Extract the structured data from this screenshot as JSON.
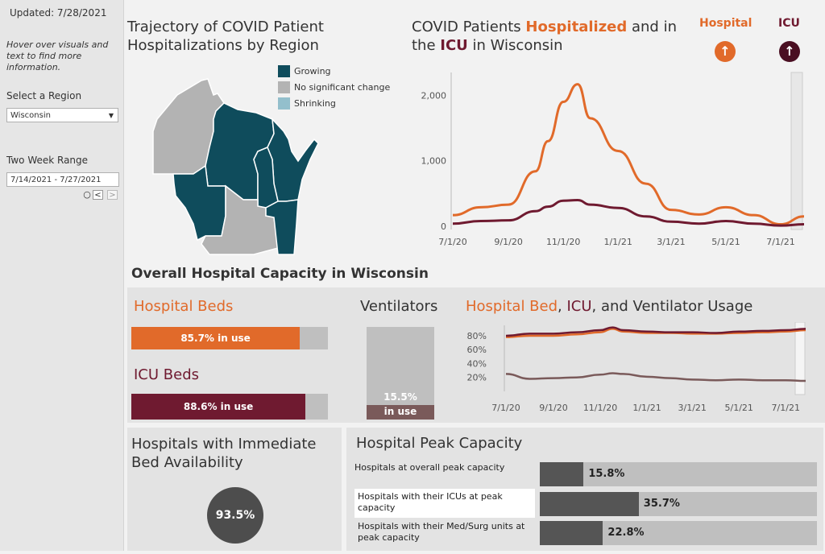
{
  "sidebar": {
    "updated": "Updated: 7/28/2021",
    "hint": "Hover over visuals and text to find more information.",
    "region_label": "Select a Region",
    "region_value": "Wisconsin",
    "range_label": "Two Week Range",
    "range_value": "7/14/2021 - 7/27/2021"
  },
  "map": {
    "title": "Trajectory of COVID Patient Hospitalizations by Region",
    "legend": [
      {
        "label": "Growing",
        "color": "#0f4c5c"
      },
      {
        "label": "No significant change",
        "color": "#b3b3b3"
      },
      {
        "label": "Shrinking",
        "color": "#93bfcc"
      }
    ]
  },
  "hosp_chart": {
    "title_pre": "COVID Patients ",
    "title_hosp": "Hospitalized",
    "title_mid": " and in the ",
    "title_icu": "ICU",
    "title_post": " in Wisconsin",
    "hospital_label": "Hospital",
    "icu_label": "ICU",
    "hospital_color": "#e16a2a",
    "icu_color": "#6f1a30"
  },
  "capacity": {
    "heading": "Overall Hospital Capacity in Wisconsin",
    "hospital_beds_label": "Hospital Beds",
    "hospital_beds_text": "85.7% in use",
    "hospital_beds_pct": 85.7,
    "icu_beds_label": "ICU Beds",
    "icu_beds_text": "88.6% in use",
    "icu_beds_pct": 88.6,
    "ventilators_label": "Ventilators",
    "ventilators_pct_text": "15.5%",
    "ventilators_use_text": "in use",
    "ventilators_pct": 15.5
  },
  "usage_chart": {
    "title_hosp": "Hospital Bed",
    "title_sep1": ", ",
    "title_icu": "ICU",
    "title_sep2": ", and Ventilator Usage"
  },
  "immediate": {
    "title": "Hospitals with Immediate Bed Availability",
    "value": "93.5%"
  },
  "peak": {
    "title": "Hospital Peak Capacity",
    "rows": [
      {
        "label": "Hospitals at overall peak capacity",
        "value_text": "15.8%",
        "pct": 15.8
      },
      {
        "label": "Hospitals with their ICUs at peak capacity",
        "value_text": "35.7%",
        "pct": 35.7
      },
      {
        "label": "Hospitals with their Med/Surg units at peak capacity",
        "value_text": "22.8%",
        "pct": 22.8
      }
    ]
  },
  "chart_data": [
    {
      "type": "line",
      "title": "COVID Patients Hospitalized and in the ICU in Wisconsin",
      "x": [
        "7/1/20",
        "8/1/20",
        "9/1/20",
        "10/1/20",
        "10/15/20",
        "11/1/20",
        "11/17/20",
        "12/1/20",
        "1/1/21",
        "2/1/21",
        "3/1/21",
        "4/1/21",
        "5/1/21",
        "6/1/21",
        "7/1/21",
        "7/27/21"
      ],
      "xticks": [
        "7/1/20",
        "9/1/20",
        "11/1/20",
        "1/1/21",
        "3/1/21",
        "5/1/21",
        "7/1/21"
      ],
      "yticks": [
        0,
        1000,
        2000
      ],
      "ylim": [
        0,
        2300
      ],
      "series": [
        {
          "name": "Hospital",
          "values": [
            170,
            290,
            330,
            840,
            1300,
            1900,
            2170,
            1650,
            1150,
            650,
            250,
            180,
            290,
            170,
            30,
            150
          ]
        },
        {
          "name": "ICU",
          "values": [
            40,
            80,
            90,
            230,
            300,
            390,
            400,
            330,
            280,
            150,
            70,
            40,
            80,
            40,
            10,
            30
          ]
        }
      ]
    },
    {
      "type": "line",
      "title": "Hospital Bed, ICU, and Ventilator Usage",
      "x": [
        "7/1/20",
        "8/1/20",
        "9/1/20",
        "10/1/20",
        "11/1/20",
        "11/17/20",
        "12/1/20",
        "1/1/21",
        "2/1/21",
        "3/1/21",
        "4/1/21",
        "5/1/21",
        "6/1/21",
        "7/1/21",
        "7/27/21"
      ],
      "xticks": [
        "7/1/20",
        "9/1/20",
        "11/1/20",
        "1/1/21",
        "3/1/21",
        "5/1/21",
        "7/1/21"
      ],
      "yticks": [
        "20%",
        "40%",
        "60%",
        "80%"
      ],
      "ylim": [
        0,
        95
      ],
      "series": [
        {
          "name": "Hospital Bed",
          "values": [
            78,
            80,
            80,
            82,
            85,
            90,
            86,
            84,
            84,
            83,
            83,
            84,
            85,
            86,
            88
          ]
        },
        {
          "name": "ICU",
          "values": [
            80,
            83,
            83,
            85,
            88,
            92,
            88,
            86,
            85,
            85,
            84,
            86,
            87,
            88,
            90
          ]
        },
        {
          "name": "Ventilator",
          "values": [
            25,
            18,
            19,
            20,
            24,
            26,
            25,
            21,
            19,
            17,
            16,
            17,
            16,
            16,
            15
          ]
        }
      ]
    }
  ]
}
